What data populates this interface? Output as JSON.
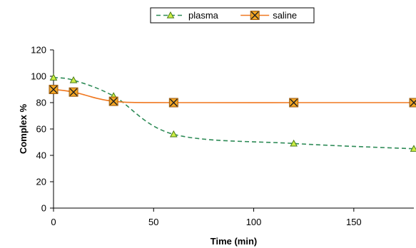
{
  "chart_data": {
    "type": "line",
    "title": "",
    "xlabel": "Time (min)",
    "ylabel": "Complex %",
    "xlim": [
      0,
      180
    ],
    "ylim": [
      0,
      120
    ],
    "x_ticks": [
      0,
      50,
      100,
      150
    ],
    "y_ticks": [
      0,
      20,
      40,
      60,
      80,
      100,
      120
    ],
    "grid": false,
    "legend_position": "top",
    "series": [
      {
        "name": "plasma",
        "color": "#2e8b57",
        "marker": "triangle",
        "marker_fill": "#ccee44",
        "line_style": "dashed",
        "x": [
          0,
          10,
          30,
          60,
          120,
          180
        ],
        "y": [
          99,
          97,
          85,
          56,
          49,
          45
        ]
      },
      {
        "name": "saline",
        "color": "#f07820",
        "marker": "square-x",
        "marker_fill": "#f5a623",
        "line_style": "solid",
        "x": [
          0,
          10,
          30,
          60,
          120,
          180
        ],
        "y": [
          90,
          88,
          81,
          80,
          80,
          80
        ]
      }
    ]
  }
}
